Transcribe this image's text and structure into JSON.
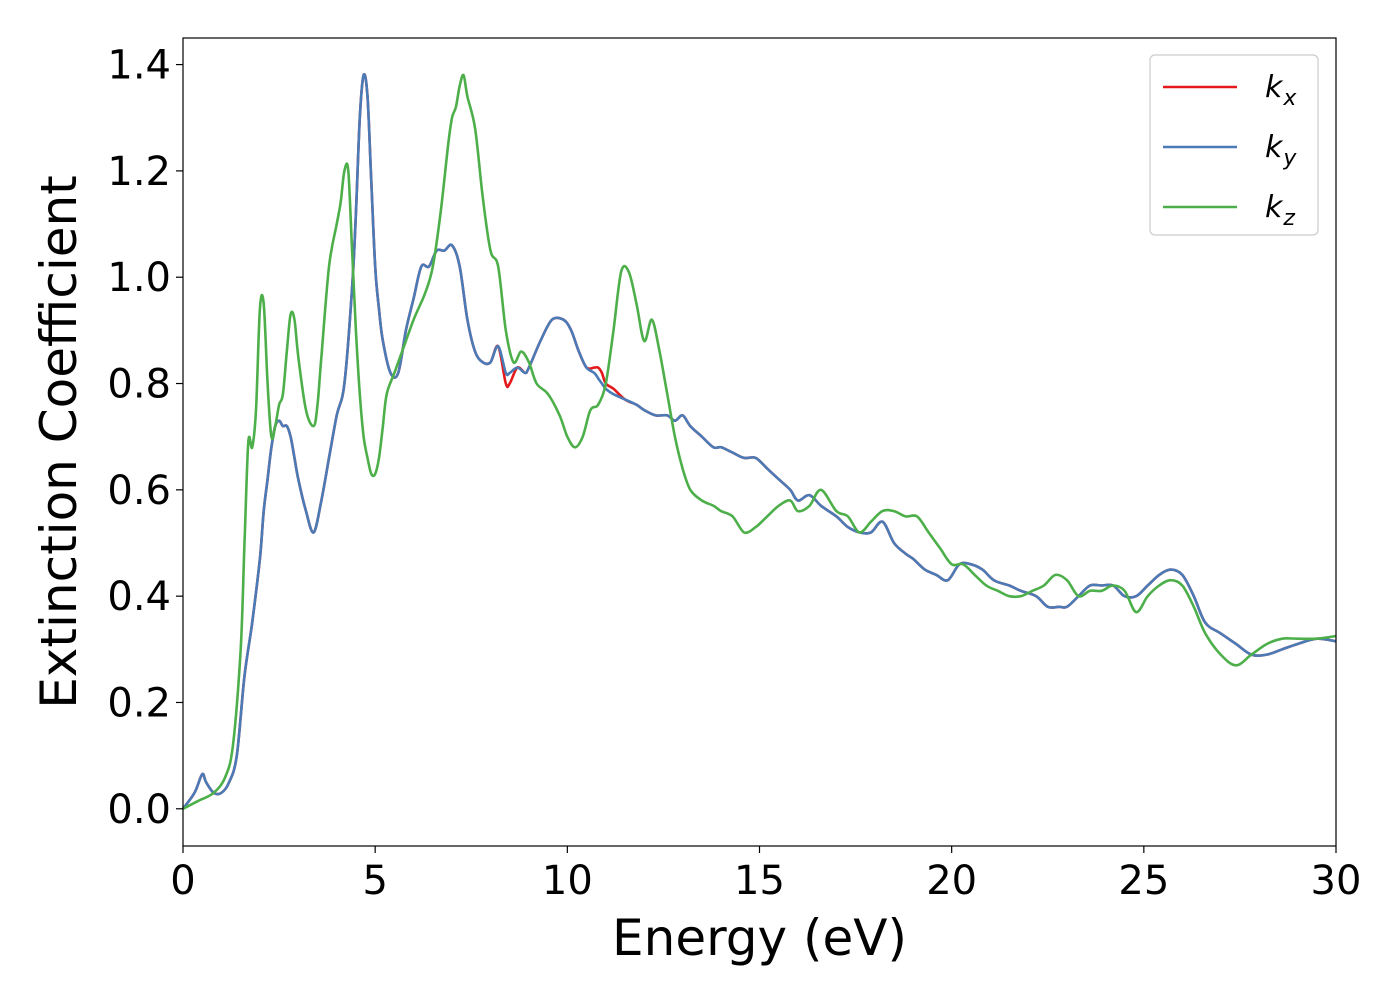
{
  "chart_data": {
    "type": "line",
    "title": "",
    "xlabel": "Energy (eV)",
    "ylabel": "Extinction Coefficient",
    "xlim": [
      0,
      30
    ],
    "ylim": [
      -0.07,
      1.45
    ],
    "xticks": [
      0,
      5,
      10,
      15,
      20,
      25,
      30
    ],
    "yticks": [
      0.0,
      0.2,
      0.4,
      0.6,
      0.8,
      1.0,
      1.2,
      1.4
    ],
    "xtick_labels": [
      "0",
      "5",
      "10",
      "15",
      "20",
      "25",
      "30"
    ],
    "ytick_labels": [
      "0.0",
      "0.2",
      "0.4",
      "0.6",
      "0.8",
      "1.0",
      "1.2",
      "1.4"
    ],
    "grid": false,
    "legend_position": "top-right",
    "series": [
      {
        "name": "k_x",
        "label_main": "k",
        "label_sub": "x",
        "color": "#e41a1c",
        "x": [
          0,
          0.3,
          0.5,
          0.6,
          0.8,
          1.0,
          1.2,
          1.4,
          1.6,
          1.8,
          2.0,
          2.1,
          2.2,
          2.3,
          2.4,
          2.5,
          2.6,
          2.7,
          2.8,
          2.9,
          3.0,
          3.2,
          3.4,
          3.6,
          3.8,
          4.0,
          4.2,
          4.4,
          4.5,
          4.6,
          4.7,
          4.8,
          4.9,
          5.0,
          5.1,
          5.2,
          5.4,
          5.6,
          5.8,
          6.0,
          6.2,
          6.4,
          6.6,
          6.8,
          7.0,
          7.2,
          7.4,
          7.6,
          7.8,
          8.0,
          8.2,
          8.4,
          8.5,
          8.7,
          8.9,
          9.0,
          9.3,
          9.6,
          9.9,
          10.1,
          10.3,
          10.5,
          10.7,
          10.8,
          10.9,
          11.0,
          11.2,
          11.5,
          11.8,
          12.0,
          12.3,
          12.6,
          12.8,
          13.0,
          13.2,
          13.5,
          13.8,
          14.0,
          14.3,
          14.6,
          14.9,
          15.2,
          15.5,
          15.8,
          16.0,
          16.3,
          16.6,
          17.0,
          17.3,
          17.6,
          17.9,
          18.2,
          18.5,
          18.8,
          19.0,
          19.3,
          19.6,
          19.9,
          20.2,
          20.5,
          20.8,
          21.1,
          21.5,
          21.8,
          22.2,
          22.5,
          22.8,
          23.0,
          23.3,
          23.6,
          23.9,
          24.2,
          24.5,
          24.8,
          25.1,
          25.4,
          25.7,
          26.0,
          26.3,
          26.6,
          27.0,
          27.4,
          27.8,
          28.2,
          28.6,
          29.0,
          29.5,
          30.0
        ],
        "y": [
          0.0,
          0.03,
          0.065,
          0.05,
          0.03,
          0.03,
          0.05,
          0.1,
          0.25,
          0.35,
          0.47,
          0.56,
          0.62,
          0.68,
          0.72,
          0.73,
          0.72,
          0.72,
          0.7,
          0.66,
          0.62,
          0.56,
          0.52,
          0.58,
          0.66,
          0.74,
          0.8,
          0.98,
          1.12,
          1.3,
          1.38,
          1.34,
          1.18,
          1.02,
          0.94,
          0.88,
          0.82,
          0.82,
          0.9,
          0.96,
          1.02,
          1.02,
          1.05,
          1.05,
          1.06,
          1.02,
          0.92,
          0.86,
          0.84,
          0.84,
          0.87,
          0.8,
          0.8,
          0.83,
          0.82,
          0.83,
          0.88,
          0.92,
          0.92,
          0.9,
          0.86,
          0.83,
          0.83,
          0.83,
          0.82,
          0.8,
          0.79,
          0.77,
          0.76,
          0.75,
          0.74,
          0.74,
          0.73,
          0.74,
          0.72,
          0.7,
          0.68,
          0.68,
          0.67,
          0.66,
          0.66,
          0.64,
          0.62,
          0.6,
          0.58,
          0.59,
          0.57,
          0.55,
          0.53,
          0.52,
          0.52,
          0.54,
          0.5,
          0.48,
          0.47,
          0.45,
          0.44,
          0.43,
          0.46,
          0.46,
          0.45,
          0.43,
          0.42,
          0.41,
          0.4,
          0.38,
          0.38,
          0.38,
          0.4,
          0.42,
          0.42,
          0.42,
          0.4,
          0.4,
          0.42,
          0.44,
          0.45,
          0.44,
          0.4,
          0.35,
          0.33,
          0.31,
          0.29,
          0.29,
          0.3,
          0.31,
          0.32,
          0.315
        ]
      },
      {
        "name": "k_y",
        "label_main": "k",
        "label_sub": "y",
        "color": "#4a7bb7",
        "x": [
          0,
          0.3,
          0.5,
          0.6,
          0.8,
          1.0,
          1.2,
          1.4,
          1.6,
          1.8,
          2.0,
          2.1,
          2.2,
          2.3,
          2.4,
          2.5,
          2.6,
          2.7,
          2.8,
          2.9,
          3.0,
          3.2,
          3.4,
          3.6,
          3.8,
          4.0,
          4.2,
          4.4,
          4.5,
          4.6,
          4.7,
          4.8,
          4.9,
          5.0,
          5.1,
          5.2,
          5.4,
          5.6,
          5.8,
          6.0,
          6.2,
          6.4,
          6.6,
          6.8,
          7.0,
          7.2,
          7.4,
          7.6,
          7.8,
          8.0,
          8.2,
          8.4,
          8.5,
          8.7,
          8.9,
          9.0,
          9.3,
          9.6,
          9.9,
          10.1,
          10.3,
          10.5,
          10.7,
          10.8,
          10.9,
          11.0,
          11.2,
          11.5,
          11.8,
          12.0,
          12.3,
          12.6,
          12.8,
          13.0,
          13.2,
          13.5,
          13.8,
          14.0,
          14.3,
          14.6,
          14.9,
          15.2,
          15.5,
          15.8,
          16.0,
          16.3,
          16.6,
          17.0,
          17.3,
          17.6,
          17.9,
          18.2,
          18.5,
          18.8,
          19.0,
          19.3,
          19.6,
          19.9,
          20.2,
          20.5,
          20.8,
          21.1,
          21.5,
          21.8,
          22.2,
          22.5,
          22.8,
          23.0,
          23.3,
          23.6,
          23.9,
          24.2,
          24.5,
          24.8,
          25.1,
          25.4,
          25.7,
          26.0,
          26.3,
          26.6,
          27.0,
          27.4,
          27.8,
          28.2,
          28.6,
          29.0,
          29.5,
          30.0
        ],
        "y": [
          0.0,
          0.03,
          0.065,
          0.05,
          0.03,
          0.03,
          0.05,
          0.1,
          0.25,
          0.35,
          0.47,
          0.56,
          0.62,
          0.68,
          0.72,
          0.73,
          0.72,
          0.72,
          0.7,
          0.66,
          0.62,
          0.56,
          0.52,
          0.58,
          0.66,
          0.74,
          0.8,
          0.98,
          1.12,
          1.3,
          1.38,
          1.34,
          1.18,
          1.02,
          0.94,
          0.88,
          0.82,
          0.82,
          0.9,
          0.96,
          1.02,
          1.02,
          1.05,
          1.05,
          1.06,
          1.02,
          0.92,
          0.86,
          0.84,
          0.84,
          0.87,
          0.82,
          0.82,
          0.83,
          0.82,
          0.83,
          0.88,
          0.92,
          0.92,
          0.9,
          0.86,
          0.83,
          0.82,
          0.81,
          0.8,
          0.79,
          0.78,
          0.77,
          0.76,
          0.75,
          0.74,
          0.74,
          0.73,
          0.74,
          0.72,
          0.7,
          0.68,
          0.68,
          0.67,
          0.66,
          0.66,
          0.64,
          0.62,
          0.6,
          0.58,
          0.59,
          0.57,
          0.55,
          0.53,
          0.52,
          0.52,
          0.54,
          0.5,
          0.48,
          0.47,
          0.45,
          0.44,
          0.43,
          0.46,
          0.46,
          0.45,
          0.43,
          0.42,
          0.41,
          0.4,
          0.38,
          0.38,
          0.38,
          0.4,
          0.42,
          0.42,
          0.42,
          0.4,
          0.4,
          0.42,
          0.44,
          0.45,
          0.44,
          0.4,
          0.35,
          0.33,
          0.31,
          0.29,
          0.29,
          0.3,
          0.31,
          0.32,
          0.315
        ]
      },
      {
        "name": "k_z",
        "label_main": "k",
        "label_sub": "z",
        "color": "#4daf4a",
        "x": [
          0,
          0.4,
          0.8,
          1.1,
          1.3,
          1.5,
          1.6,
          1.7,
          1.8,
          1.9,
          2.0,
          2.1,
          2.2,
          2.3,
          2.4,
          2.5,
          2.6,
          2.7,
          2.8,
          2.9,
          3.0,
          3.2,
          3.4,
          3.5,
          3.6,
          3.8,
          4.0,
          4.1,
          4.2,
          4.3,
          4.4,
          4.5,
          4.6,
          4.7,
          4.8,
          4.9,
          5.0,
          5.1,
          5.2,
          5.3,
          5.5,
          5.7,
          6.0,
          6.3,
          6.5,
          6.7,
          6.9,
          7.0,
          7.1,
          7.2,
          7.3,
          7.4,
          7.6,
          7.8,
          8.0,
          8.2,
          8.4,
          8.6,
          8.8,
          9.0,
          9.2,
          9.5,
          9.8,
          10.0,
          10.2,
          10.4,
          10.6,
          10.8,
          11.0,
          11.2,
          11.4,
          11.6,
          11.8,
          12.0,
          12.2,
          12.4,
          12.6,
          12.8,
          13.0,
          13.2,
          13.5,
          13.8,
          14.0,
          14.3,
          14.6,
          14.9,
          15.2,
          15.5,
          15.8,
          16.0,
          16.3,
          16.6,
          17.0,
          17.3,
          17.6,
          17.9,
          18.2,
          18.5,
          18.8,
          19.1,
          19.4,
          19.7,
          20.0,
          20.3,
          20.6,
          20.9,
          21.2,
          21.5,
          21.8,
          22.1,
          22.4,
          22.7,
          23.0,
          23.3,
          23.6,
          23.9,
          24.2,
          24.5,
          24.8,
          25.1,
          25.4,
          25.7,
          26.0,
          26.3,
          26.6,
          27.0,
          27.4,
          27.8,
          28.2,
          28.6,
          29.0,
          29.5,
          30.0
        ],
        "y": [
          0.0,
          0.015,
          0.03,
          0.06,
          0.12,
          0.3,
          0.5,
          0.69,
          0.68,
          0.75,
          0.94,
          0.95,
          0.8,
          0.7,
          0.72,
          0.76,
          0.78,
          0.86,
          0.93,
          0.92,
          0.85,
          0.75,
          0.72,
          0.76,
          0.85,
          1.02,
          1.1,
          1.14,
          1.2,
          1.2,
          1.05,
          0.9,
          0.78,
          0.7,
          0.66,
          0.63,
          0.63,
          0.66,
          0.72,
          0.78,
          0.82,
          0.86,
          0.92,
          0.97,
          1.02,
          1.12,
          1.25,
          1.3,
          1.32,
          1.36,
          1.38,
          1.34,
          1.28,
          1.15,
          1.05,
          1.02,
          0.9,
          0.84,
          0.86,
          0.84,
          0.8,
          0.78,
          0.74,
          0.7,
          0.68,
          0.7,
          0.75,
          0.76,
          0.8,
          0.9,
          1.01,
          1.01,
          0.95,
          0.88,
          0.92,
          0.86,
          0.78,
          0.7,
          0.64,
          0.6,
          0.58,
          0.57,
          0.56,
          0.55,
          0.52,
          0.53,
          0.55,
          0.57,
          0.58,
          0.56,
          0.57,
          0.6,
          0.56,
          0.55,
          0.52,
          0.54,
          0.56,
          0.56,
          0.55,
          0.55,
          0.52,
          0.49,
          0.46,
          0.46,
          0.44,
          0.42,
          0.41,
          0.4,
          0.4,
          0.41,
          0.42,
          0.44,
          0.43,
          0.4,
          0.41,
          0.41,
          0.42,
          0.41,
          0.37,
          0.4,
          0.42,
          0.43,
          0.42,
          0.38,
          0.33,
          0.29,
          0.27,
          0.29,
          0.31,
          0.32,
          0.32,
          0.32,
          0.325
        ]
      }
    ]
  }
}
